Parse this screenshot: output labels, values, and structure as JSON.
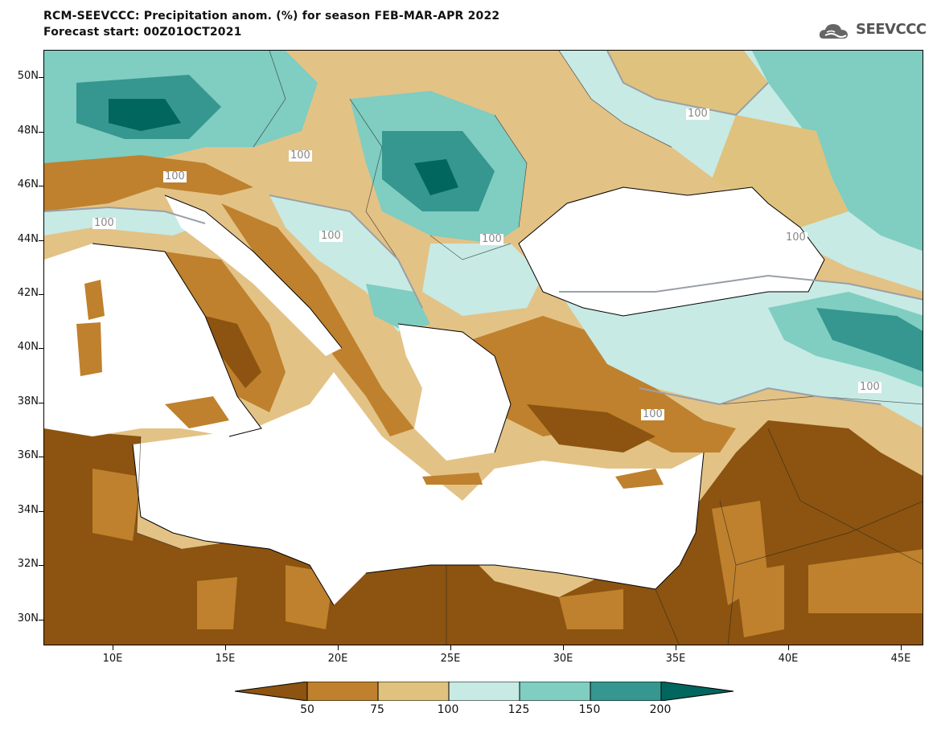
{
  "title": {
    "line1": "RCM-SEEVCCC: Precipitation anom. (%) for season FEB-MAR-APR 2022",
    "line2": "Forecast start: 00Z01OCT2021"
  },
  "logo": {
    "text": "SEEVCCC",
    "icon": "cloud-icon"
  },
  "map": {
    "lat_labels": [
      "50N",
      "48N",
      "46N",
      "44N",
      "42N",
      "40N",
      "38N",
      "36N",
      "34N",
      "32N",
      "30N"
    ],
    "lon_labels": [
      "10E",
      "15E",
      "20E",
      "25E",
      "30E",
      "35E",
      "40E",
      "45E"
    ],
    "contour_label": "100"
  },
  "colorbar": {
    "labels": [
      "50",
      "75",
      "100",
      "125",
      "150",
      "200"
    ],
    "colors": [
      "#8c5410",
      "#bf812d",
      "#dfc27d",
      "#c7eae5",
      "#80cdc1",
      "#35978f",
      "#01665e"
    ]
  },
  "palette": {
    "sea": "#ffffff",
    "very_dry": "#8c5410",
    "dry": "#bf812d",
    "slightly_dry": "#dfc27d",
    "normal_wet": "#c7eae5",
    "wet": "#80cdc1",
    "very_wet": "#35978f",
    "extreme_wet": "#01665e"
  }
}
